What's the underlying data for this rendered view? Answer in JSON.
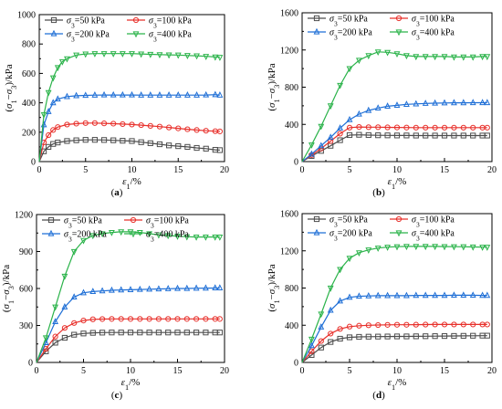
{
  "panel_order": [
    "a",
    "b",
    "c",
    "d"
  ],
  "legend_labels": [
    "σ3=50 kPa",
    "σ3=100 kPa",
    "σ3=200 kPa",
    "σ3=400 kPa"
  ],
  "series_styles": [
    {
      "color": "#4d4d4d",
      "marker": "square"
    },
    {
      "color": "#e8302b",
      "marker": "circle"
    },
    {
      "color": "#1f6fd6",
      "marker": "triangle-up"
    },
    {
      "color": "#2bb34a",
      "marker": "triangle-down"
    }
  ],
  "chart_data": [
    {
      "type": "line",
      "panel": "(a)",
      "xlabel": "ε1/%",
      "ylabel": "(σ1−σ3)/kPa",
      "xlim": [
        0,
        20
      ],
      "ylim": [
        0,
        1000
      ],
      "xticks": [
        0,
        5,
        10,
        15,
        20
      ],
      "yticks": [
        0,
        200,
        400,
        600,
        800,
        1000
      ],
      "grid": false,
      "legend_position": "top, two columns",
      "series": [
        {
          "name": "σ3=50 kPa",
          "x": [
            0,
            0.5,
            1,
            1.5,
            2,
            3,
            4,
            5,
            6,
            7,
            8,
            9,
            10,
            11,
            12,
            13,
            14,
            15,
            16,
            17,
            18,
            19,
            19.5
          ],
          "y": [
            0,
            70,
            100,
            120,
            130,
            140,
            145,
            148,
            148,
            147,
            145,
            142,
            140,
            132,
            125,
            118,
            110,
            105,
            100,
            93,
            88,
            80,
            78
          ]
        },
        {
          "name": "σ3=100 kPa",
          "x": [
            0,
            0.5,
            1,
            1.5,
            2,
            3,
            4,
            5,
            6,
            7,
            8,
            9,
            10,
            11,
            12,
            13,
            14,
            15,
            16,
            17,
            18,
            19,
            19.5
          ],
          "y": [
            0,
            130,
            180,
            215,
            235,
            252,
            258,
            262,
            262,
            260,
            258,
            255,
            252,
            248,
            243,
            238,
            232,
            226,
            220,
            215,
            210,
            207,
            205
          ]
        },
        {
          "name": "σ3=200 kPa",
          "x": [
            0,
            0.5,
            1,
            1.5,
            2,
            3,
            4,
            5,
            6,
            7,
            8,
            9,
            10,
            11,
            12,
            13,
            14,
            15,
            16,
            17,
            18,
            19,
            19.5
          ],
          "y": [
            0,
            250,
            340,
            400,
            425,
            442,
            448,
            450,
            452,
            453,
            453,
            453,
            453,
            452,
            452,
            452,
            452,
            452,
            452,
            452,
            453,
            455,
            452
          ]
        },
        {
          "name": "σ3=400 kPa",
          "x": [
            0,
            0.5,
            1,
            1.5,
            2,
            2.5,
            3,
            4,
            5,
            6,
            7,
            8,
            9,
            10,
            11,
            12,
            13,
            14,
            15,
            16,
            17,
            18,
            19,
            19.5
          ],
          "y": [
            0,
            320,
            470,
            570,
            640,
            680,
            700,
            725,
            732,
            735,
            735,
            735,
            735,
            735,
            732,
            730,
            728,
            726,
            725,
            722,
            720,
            716,
            712,
            710
          ]
        }
      ]
    },
    {
      "type": "line",
      "panel": "(b)",
      "xlabel": "ε1/%",
      "ylabel": "(σ1−σ3)/kPa",
      "xlim": [
        0,
        20
      ],
      "ylim": [
        0,
        1600
      ],
      "xticks": [
        0,
        5,
        10,
        15,
        20
      ],
      "yticks": [
        0,
        400,
        800,
        1200,
        1600
      ],
      "grid": false,
      "legend_position": "top, two columns",
      "series": [
        {
          "name": "σ3=50 kPa",
          "x": [
            0,
            1,
            2,
            3,
            4,
            5,
            6,
            7,
            8,
            9,
            10,
            11,
            12,
            13,
            14,
            15,
            16,
            17,
            18,
            19,
            19.5
          ],
          "y": [
            0,
            60,
            115,
            170,
            230,
            285,
            288,
            285,
            283,
            282,
            281,
            281,
            280,
            280,
            280,
            280,
            280,
            280,
            280,
            280,
            280
          ]
        },
        {
          "name": "σ3=100 kPa",
          "x": [
            0,
            1,
            2,
            3,
            4,
            5,
            6,
            7,
            8,
            9,
            10,
            11,
            12,
            13,
            14,
            15,
            16,
            17,
            18,
            19,
            19.5
          ],
          "y": [
            0,
            70,
            140,
            220,
            300,
            365,
            372,
            370,
            370,
            368,
            367,
            366,
            365,
            365,
            365,
            365,
            365,
            365,
            365,
            365,
            365
          ]
        },
        {
          "name": "σ3=200 kPa",
          "x": [
            0,
            1,
            2,
            3,
            4,
            5,
            6,
            7,
            8,
            9,
            10,
            11,
            12,
            13,
            14,
            15,
            16,
            17,
            18,
            19,
            19.5
          ],
          "y": [
            0,
            80,
            170,
            260,
            360,
            450,
            510,
            550,
            575,
            595,
            605,
            615,
            620,
            625,
            628,
            630,
            632,
            632,
            633,
            633,
            633
          ]
        },
        {
          "name": "σ3=400 kPa",
          "x": [
            0,
            1,
            2,
            3,
            4,
            5,
            6,
            7,
            8,
            9,
            10,
            11,
            12,
            13,
            14,
            15,
            16,
            17,
            18,
            19,
            19.5
          ],
          "y": [
            0,
            180,
            380,
            600,
            820,
            1000,
            1090,
            1140,
            1180,
            1175,
            1160,
            1140,
            1130,
            1130,
            1130,
            1130,
            1125,
            1125,
            1125,
            1130,
            1130
          ]
        }
      ]
    },
    {
      "type": "line",
      "panel": "(c)",
      "xlabel": "ε1/%",
      "ylabel": "(σ1−σ3)/kPa",
      "xlim": [
        0,
        20
      ],
      "ylim": [
        0,
        1200
      ],
      "xticks": [
        0,
        5,
        10,
        15,
        20
      ],
      "yticks": [
        0,
        300,
        600,
        900,
        1200
      ],
      "grid": false,
      "legend_position": "top, two columns",
      "series": [
        {
          "name": "σ3=50 kPa",
          "x": [
            0,
            1,
            2,
            3,
            4,
            5,
            6,
            7,
            8,
            9,
            10,
            11,
            12,
            13,
            14,
            15,
            16,
            17,
            18,
            19,
            19.5
          ],
          "y": [
            0,
            90,
            160,
            200,
            225,
            235,
            240,
            242,
            243,
            243,
            243,
            243,
            243,
            243,
            243,
            243,
            243,
            243,
            243,
            243,
            243
          ]
        },
        {
          "name": "σ3=100 kPa",
          "x": [
            0,
            1,
            2,
            3,
            4,
            5,
            6,
            7,
            8,
            9,
            10,
            11,
            12,
            13,
            14,
            15,
            16,
            17,
            18,
            19,
            19.5
          ],
          "y": [
            0,
            110,
            210,
            280,
            320,
            340,
            350,
            352,
            353,
            353,
            353,
            353,
            353,
            353,
            353,
            353,
            353,
            353,
            353,
            353,
            353
          ]
        },
        {
          "name": "σ3=200 kPa",
          "x": [
            0,
            1,
            2,
            3,
            4,
            5,
            6,
            7,
            8,
            9,
            10,
            11,
            12,
            13,
            14,
            15,
            16,
            17,
            18,
            19,
            19.5
          ],
          "y": [
            0,
            160,
            330,
            450,
            530,
            565,
            575,
            580,
            585,
            588,
            590,
            592,
            594,
            596,
            598,
            600,
            600,
            602,
            603,
            604,
            604
          ]
        },
        {
          "name": "σ3=400 kPa",
          "x": [
            0,
            1,
            2,
            3,
            4,
            5,
            6,
            7,
            8,
            9,
            10,
            11,
            12,
            13,
            14,
            15,
            16,
            17,
            18,
            19,
            19.5
          ],
          "y": [
            0,
            200,
            450,
            700,
            900,
            990,
            1030,
            1045,
            1055,
            1060,
            1060,
            1055,
            1045,
            1035,
            1030,
            1025,
            1020,
            1018,
            1018,
            1018,
            1018
          ]
        }
      ]
    },
    {
      "type": "line",
      "panel": "(d)",
      "xlabel": "ε1/%",
      "ylabel": "(σ1−σ3)/kPa",
      "xlim": [
        0,
        20
      ],
      "ylim": [
        0,
        1600
      ],
      "xticks": [
        0,
        5,
        10,
        15,
        20
      ],
      "yticks": [
        0,
        400,
        800,
        1200,
        1600
      ],
      "grid": false,
      "legend_position": "top, two columns",
      "series": [
        {
          "name": "σ3=50 kPa",
          "x": [
            0,
            1,
            2,
            3,
            4,
            5,
            6,
            7,
            8,
            9,
            10,
            11,
            12,
            13,
            14,
            15,
            16,
            17,
            18,
            19,
            19.5
          ],
          "y": [
            0,
            80,
            160,
            220,
            255,
            270,
            275,
            277,
            278,
            279,
            280,
            280,
            281,
            282,
            283,
            284,
            285,
            286,
            287,
            288,
            288
          ]
        },
        {
          "name": "σ3=100 kPa",
          "x": [
            0,
            1,
            2,
            3,
            4,
            5,
            6,
            7,
            8,
            9,
            10,
            11,
            12,
            13,
            14,
            15,
            16,
            17,
            18,
            19,
            19.5
          ],
          "y": [
            0,
            120,
            230,
            310,
            360,
            385,
            395,
            400,
            402,
            404,
            405,
            405,
            406,
            407,
            408,
            408,
            408,
            408,
            408,
            408,
            408
          ]
        },
        {
          "name": "σ3=200 kPa",
          "x": [
            0,
            1,
            2,
            3,
            4,
            5,
            6,
            7,
            8,
            9,
            10,
            11,
            12,
            13,
            14,
            15,
            16,
            17,
            18,
            19,
            19.5
          ],
          "y": [
            0,
            180,
            380,
            560,
            660,
            700,
            712,
            715,
            718,
            718,
            718,
            718,
            720,
            720,
            720,
            720,
            722,
            722,
            722,
            720,
            720
          ]
        },
        {
          "name": "σ3=400 kPa",
          "x": [
            0,
            1,
            2,
            3,
            4,
            5,
            6,
            7,
            8,
            9,
            10,
            11,
            12,
            13,
            14,
            15,
            16,
            17,
            18,
            19,
            19.5
          ],
          "y": [
            0,
            250,
            520,
            800,
            1000,
            1120,
            1180,
            1210,
            1230,
            1240,
            1245,
            1248,
            1248,
            1248,
            1248,
            1246,
            1245,
            1244,
            1242,
            1240,
            1240
          ]
        }
      ]
    }
  ]
}
